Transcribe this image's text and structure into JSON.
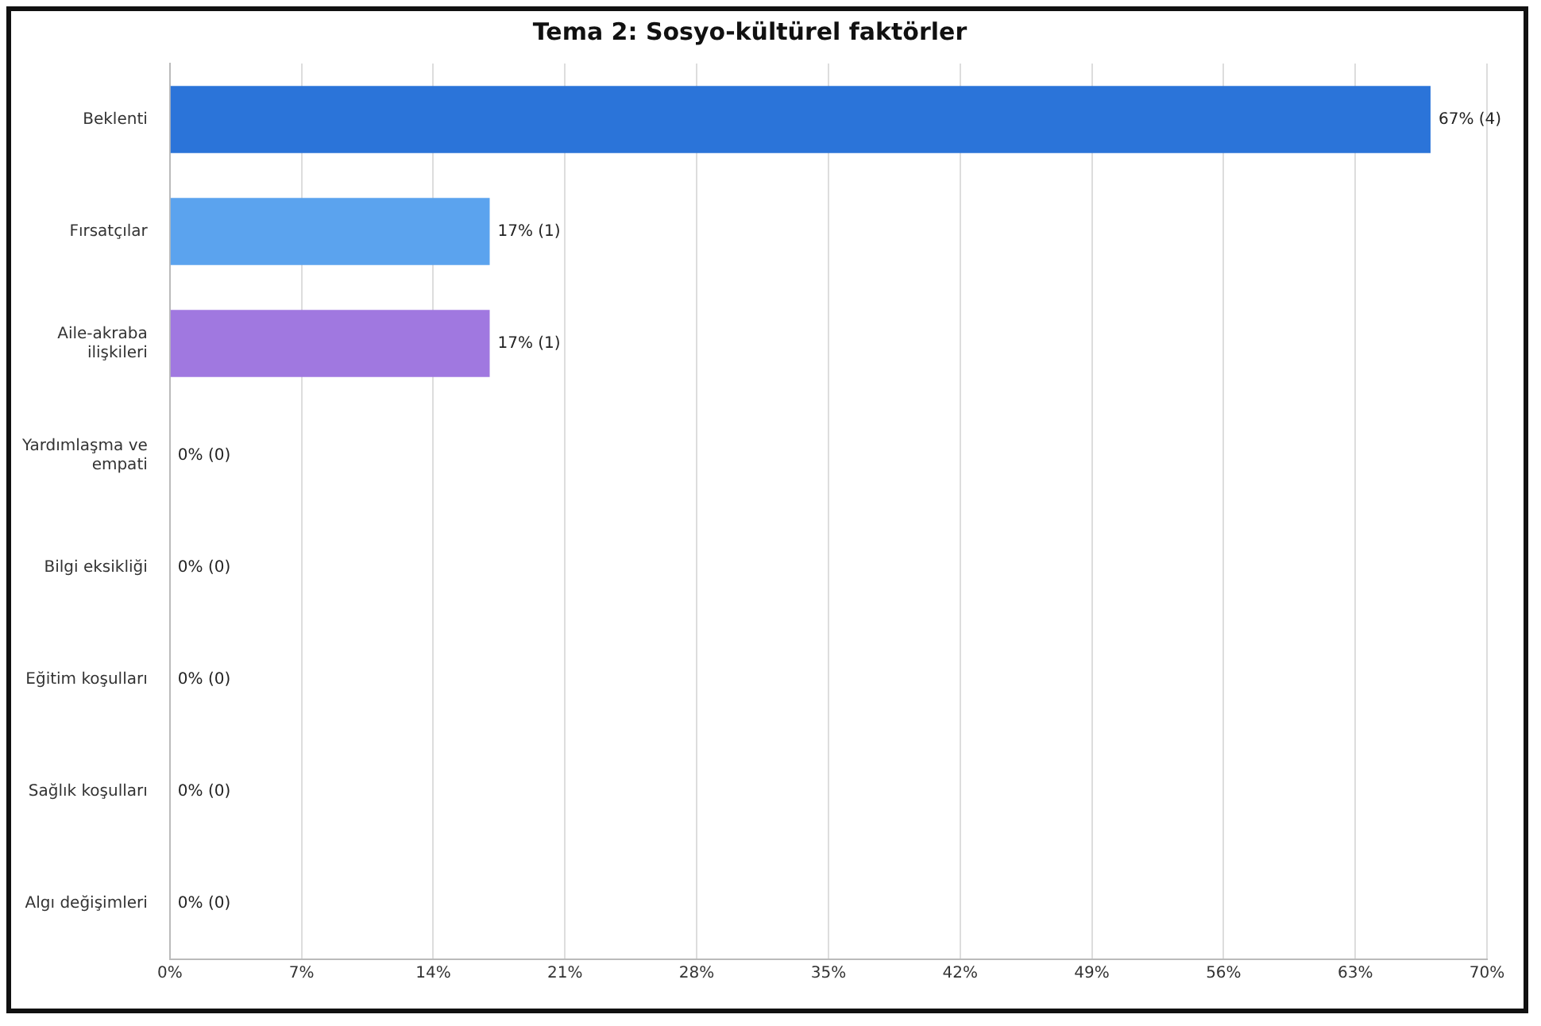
{
  "chart_data": {
    "type": "bar",
    "orientation": "horizontal",
    "title": "Tema 2: Sosyo-kültürel faktörler",
    "categories": [
      "Beklenti",
      "Fırsatçılar",
      "Aile-akraba ilişkileri",
      "Yardımlaşma ve empati",
      "Bilgi eksikliği",
      "Eğitim koşulları",
      "Sağlık koşulları",
      "Algı değişimleri"
    ],
    "values": [
      67,
      17,
      17,
      0,
      0,
      0,
      0,
      0
    ],
    "colors": [
      "#2b74d9",
      "#5ba3ee",
      "#a078e0",
      "#2b74d9",
      "#2b74d9",
      "#2b74d9",
      "#2b74d9",
      "#2b74d9"
    ],
    "value_labels": [
      "67% (4)",
      "17% (1)",
      "17% (1)",
      "0% (0)",
      "0% (0)",
      "0% (0)",
      "0% (0)",
      "0% (0)"
    ],
    "xlim": [
      0,
      70
    ],
    "xticks": [
      {
        "value": 0,
        "label": "0%"
      },
      {
        "value": 7,
        "label": "7%"
      },
      {
        "value": 14,
        "label": "14%"
      },
      {
        "value": 21,
        "label": "21%"
      },
      {
        "value": 28,
        "label": "28%"
      },
      {
        "value": 35,
        "label": "35%"
      },
      {
        "value": 42,
        "label": "42%"
      },
      {
        "value": 49,
        "label": "49%"
      },
      {
        "value": 56,
        "label": "56%"
      },
      {
        "value": 63,
        "label": "63%"
      },
      {
        "value": 70,
        "label": "70%"
      }
    ],
    "grid": "x"
  }
}
